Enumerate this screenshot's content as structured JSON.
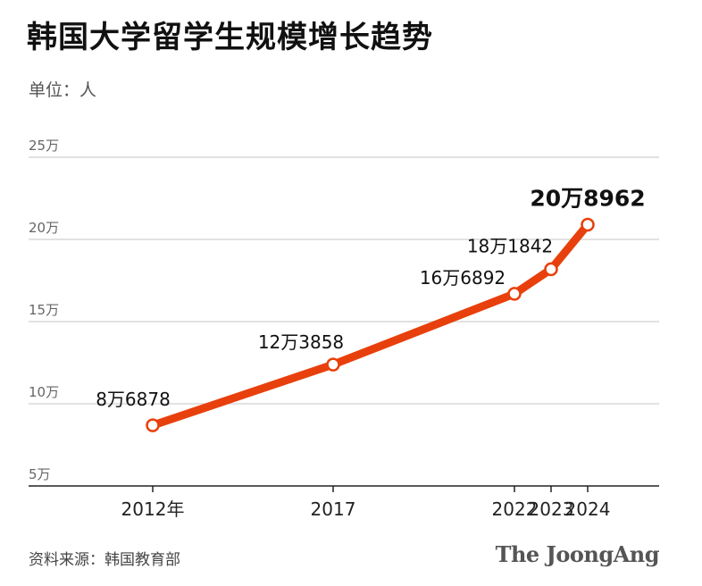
{
  "header": {
    "title": "韩国大学留学生规模增长趋势",
    "unit": "单位：人"
  },
  "footer": {
    "source": "资料来源：韩国教育部",
    "brand": "The JoongAng"
  },
  "colors": {
    "line": "#e8400c",
    "grid": "#d9d9d9",
    "axis": "#222222",
    "tick_text": "#666666"
  },
  "chart_data": {
    "type": "line",
    "title": "韩国大学留学生规模增长趋势",
    "ylabel": "单位：人",
    "xlabel": "",
    "ylim": [
      50000,
      250000
    ],
    "yticks": [
      50000,
      100000,
      150000,
      200000,
      250000
    ],
    "ytick_labels": [
      "5万",
      "10万",
      "15万",
      "20万",
      "25万"
    ],
    "x": [
      2012,
      2017,
      2022,
      2023,
      2024
    ],
    "x_labels": [
      "2012年",
      "2017",
      "2022",
      "2023",
      "2024"
    ],
    "grid": true,
    "series": [
      {
        "values": [
          86878,
          123858,
          166892,
          181842,
          208962
        ],
        "data_labels": [
          "8万6878",
          "12万3858",
          "16万6892",
          "18万1842",
          "20万8962"
        ]
      }
    ],
    "highlight_last": true
  }
}
